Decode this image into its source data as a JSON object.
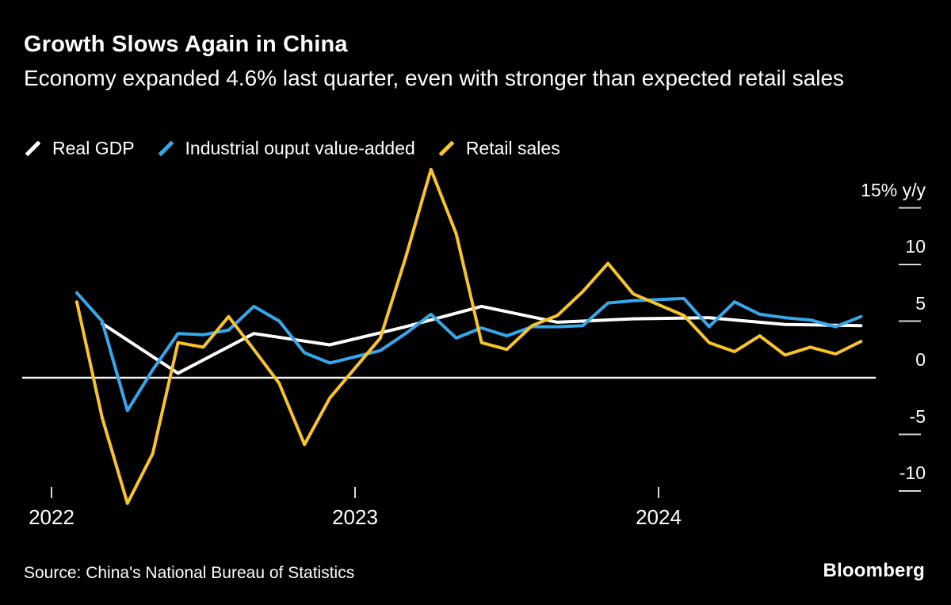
{
  "branding": {
    "logo_text": "Bloomberg"
  },
  "chart_data": {
    "type": "line",
    "title": "Growth Slows Again in China",
    "subtitle": "Economy expanded 4.6% last quarter, even with stronger than expected retail sales",
    "source": "Source: China's National Bureau of Statistics",
    "unit": "% y/y",
    "x_unit": "month_index = months since Jan 2022",
    "x_axis": {
      "year_ticks": [
        {
          "label": "2022",
          "month_index": 0
        },
        {
          "label": "2023",
          "month_index": 12
        },
        {
          "label": "2024",
          "month_index": 24
        }
      ]
    },
    "y_axis": {
      "range": [
        -12.5,
        19.5
      ],
      "ticks": [
        {
          "label": "15% y/y",
          "value": 15
        },
        {
          "label": "10",
          "value": 10
        },
        {
          "label": "5",
          "value": 5
        },
        {
          "label": "0",
          "value": 0
        },
        {
          "label": "-5",
          "value": -5
        },
        {
          "label": "-10",
          "value": -10
        }
      ]
    },
    "series": [
      {
        "name": "Real GDP",
        "color": "#ffffff",
        "frequency": "quarterly",
        "month_index": [
          2,
          5,
          8,
          11,
          14,
          17,
          20,
          23,
          26,
          29,
          32
        ],
        "values": [
          4.8,
          0.4,
          3.9,
          2.9,
          4.5,
          6.3,
          4.9,
          5.2,
          5.3,
          4.7,
          4.6
        ]
      },
      {
        "name": "Industrial ouput value-added",
        "color": "#35a8ec",
        "frequency": "monthly",
        "month_index": [
          1,
          2,
          3,
          4,
          5,
          6,
          7,
          8,
          9,
          10,
          11,
          13,
          14,
          15,
          16,
          17,
          18,
          19,
          20,
          21,
          22,
          23,
          25,
          26,
          27,
          28,
          29,
          30,
          31,
          32
        ],
        "values": [
          7.5,
          5.0,
          -2.9,
          0.7,
          3.9,
          3.8,
          4.2,
          6.3,
          5.0,
          2.2,
          1.3,
          2.4,
          3.9,
          5.6,
          3.5,
          4.4,
          3.7,
          4.5,
          4.5,
          4.6,
          6.6,
          6.8,
          7.0,
          4.5,
          6.7,
          5.6,
          5.3,
          5.1,
          4.5,
          5.4
        ]
      },
      {
        "name": "Retail sales",
        "color": "#f8c32b",
        "frequency": "monthly",
        "month_index": [
          1,
          2,
          3,
          4,
          5,
          6,
          7,
          8,
          9,
          10,
          11,
          13,
          14,
          15,
          16,
          17,
          18,
          19,
          20,
          21,
          22,
          23,
          25,
          26,
          27,
          28,
          29,
          30,
          31,
          32
        ],
        "values": [
          6.7,
          -3.5,
          -11.1,
          -6.7,
          3.1,
          2.7,
          5.4,
          2.5,
          -0.5,
          -5.9,
          -1.8,
          3.5,
          10.6,
          18.4,
          12.7,
          3.1,
          2.5,
          4.6,
          5.5,
          7.6,
          10.1,
          7.4,
          5.5,
          3.1,
          2.3,
          3.7,
          2.0,
          2.7,
          2.1,
          3.2
        ]
      }
    ]
  }
}
